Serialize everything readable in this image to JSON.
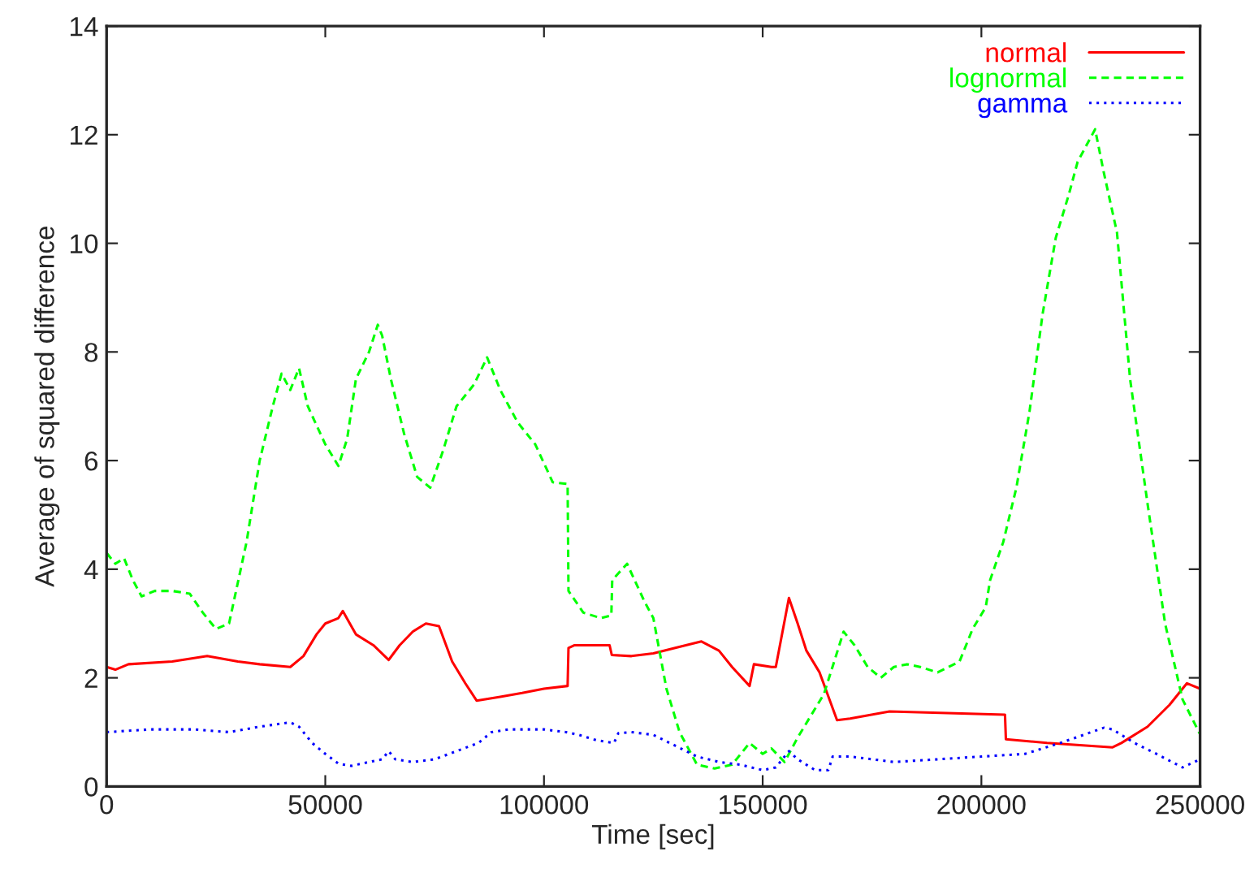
{
  "chart_data": {
    "type": "line",
    "xlabel": "Time [sec]",
    "ylabel": "Average of squared difference",
    "xlim": [
      0,
      250000
    ],
    "xticks": [
      0,
      50000,
      100000,
      150000,
      200000,
      250000
    ],
    "ylim": [
      0,
      14
    ],
    "yticks": [
      0,
      2,
      4,
      6,
      8,
      10,
      12,
      14
    ],
    "grid": false,
    "legend": "top right",
    "marker": "none",
    "series": [
      {
        "name": "normal",
        "color": "#ff0000",
        "line_style": "solid",
        "x": [
          0,
          2000,
          5000,
          15000,
          23000,
          30000,
          35000,
          42000,
          45000,
          48000,
          50000,
          53000,
          54000,
          57000,
          61000,
          64500,
          67000,
          70000,
          73000,
          76000,
          79000,
          82000,
          84600,
          90000,
          95000,
          100000,
          105400,
          105600,
          107000,
          115000,
          115500,
          120000,
          125000,
          130000,
          136000,
          140000,
          143000,
          147000,
          148000,
          152000,
          153000,
          156000,
          158000,
          160000,
          163000,
          167000,
          170000,
          179000,
          205400,
          205600,
          215000,
          230000,
          232000,
          238000,
          243000,
          247000,
          250000
        ],
        "values": [
          2.2,
          2.15,
          2.25,
          2.3,
          2.4,
          2.3,
          2.25,
          2.2,
          2.4,
          2.8,
          3.0,
          3.1,
          3.23,
          2.8,
          2.6,
          2.33,
          2.6,
          2.85,
          3.0,
          2.95,
          2.3,
          1.9,
          1.58,
          1.65,
          1.72,
          1.8,
          1.85,
          2.55,
          2.6,
          2.6,
          2.42,
          2.4,
          2.45,
          2.55,
          2.67,
          2.5,
          2.2,
          1.85,
          2.25,
          2.2,
          2.2,
          3.47,
          3.0,
          2.5,
          2.1,
          1.22,
          1.25,
          1.38,
          1.32,
          0.87,
          0.8,
          0.72,
          0.8,
          1.1,
          1.5,
          1.9,
          1.8
        ]
      },
      {
        "name": "lognormal",
        "color": "#00ff00",
        "line_style": "dashed",
        "x": [
          0,
          2000,
          4000,
          6000,
          8000,
          11000,
          15000,
          19000,
          22000,
          25000,
          28000,
          32000,
          35000,
          38000,
          40000,
          42000,
          44000,
          46000,
          50000,
          53000,
          55000,
          57000,
          60000,
          62000,
          63000,
          65000,
          68000,
          71000,
          74000,
          77000,
          80000,
          84000,
          87000,
          90000,
          94000,
          98000,
          102000,
          105400,
          105600,
          109000,
          113000,
          115400,
          115600,
          119000,
          123000,
          125000,
          128000,
          131000,
          135000,
          139000,
          143000,
          147000,
          150000,
          152000,
          155000,
          158000,
          164000,
          168500,
          171000,
          174000,
          177000,
          180000,
          183000,
          186000,
          190000,
          195000,
          198000,
          201000,
          202000,
          205000,
          208000,
          211000,
          214000,
          217000,
          220000,
          222000,
          226000,
          228000,
          231000,
          234000,
          238000,
          242000,
          246000,
          250000
        ],
        "values": [
          4.3,
          4.1,
          4.2,
          3.8,
          3.5,
          3.6,
          3.6,
          3.55,
          3.2,
          2.9,
          3.0,
          4.5,
          6.0,
          7.0,
          7.6,
          7.3,
          7.7,
          7.0,
          6.3,
          5.9,
          6.4,
          7.5,
          8.0,
          8.5,
          8.3,
          7.5,
          6.5,
          5.7,
          5.5,
          6.2,
          7.0,
          7.4,
          7.9,
          7.3,
          6.7,
          6.3,
          5.6,
          5.57,
          3.6,
          3.2,
          3.1,
          3.15,
          3.8,
          4.1,
          3.4,
          3.1,
          1.8,
          1.0,
          0.4,
          0.33,
          0.4,
          0.8,
          0.6,
          0.7,
          0.45,
          0.9,
          1.7,
          2.85,
          2.6,
          2.2,
          2.0,
          2.2,
          2.25,
          2.2,
          2.1,
          2.3,
          2.9,
          3.3,
          3.8,
          4.5,
          5.5,
          6.9,
          8.7,
          10.1,
          10.9,
          11.5,
          12.1,
          11.3,
          10.2,
          7.5,
          5.2,
          3.0,
          1.6,
          0.96
        ]
      },
      {
        "name": "gamma",
        "color": "#0000ff",
        "line_style": "dotted",
        "x": [
          0,
          10000,
          20000,
          28000,
          35000,
          42000,
          44000,
          47000,
          50000,
          53000,
          56000,
          60000,
          63000,
          64500,
          66000,
          70000,
          75000,
          80000,
          85000,
          88000,
          92000,
          100000,
          105000,
          108000,
          112000,
          116000,
          117000,
          120000,
          125000,
          130000,
          135000,
          140000,
          145000,
          150000,
          153000,
          156000,
          158000,
          162000,
          165000,
          166000,
          170000,
          180000,
          190000,
          200000,
          210000,
          218000,
          228000,
          230000,
          235000,
          240000,
          246000,
          250000
        ],
        "values": [
          1.0,
          1.05,
          1.05,
          1.0,
          1.1,
          1.18,
          1.1,
          0.8,
          0.6,
          0.42,
          0.38,
          0.45,
          0.5,
          0.65,
          0.5,
          0.45,
          0.5,
          0.65,
          0.8,
          1.0,
          1.05,
          1.05,
          1.0,
          0.95,
          0.85,
          0.8,
          0.98,
          1.0,
          0.95,
          0.75,
          0.55,
          0.45,
          0.4,
          0.3,
          0.35,
          0.65,
          0.5,
          0.3,
          0.3,
          0.55,
          0.55,
          0.45,
          0.5,
          0.55,
          0.6,
          0.8,
          1.08,
          1.05,
          0.8,
          0.6,
          0.35,
          0.5
        ]
      }
    ]
  }
}
